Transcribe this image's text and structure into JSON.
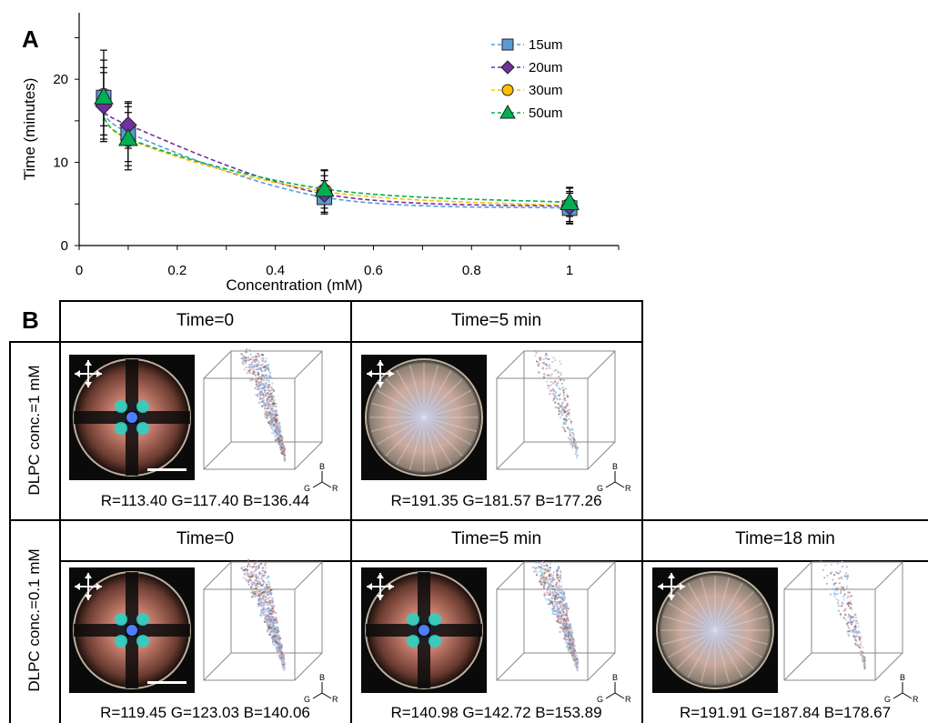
{
  "panel_a": {
    "label": "A"
  },
  "panel_b": {
    "label": "B",
    "col_headers_row1": [
      "Time=0",
      "Time=5 min"
    ],
    "col_headers_row2": [
      "Time=0",
      "Time=5 min",
      "Time=18 min"
    ],
    "row_labels": [
      "DLPC conc.=1 mM",
      "DLPC conc.=0.1 mM"
    ],
    "rgb_row1": [
      "R=113.40 G=117.40 B=136.44",
      "R=191.35 G=181.57 B=177.26"
    ],
    "rgb_row2": [
      "R=119.45 G=123.03 B=140.06",
      "R=140.98 G=142.72 B=153.89",
      "R=191.91 G=187.84 B=178.67"
    ],
    "axis_letters": {
      "b": "B",
      "g": "G",
      "r": "R"
    },
    "micro_images": [
      {
        "pattern": "maltese-cross",
        "state": "initial"
      },
      {
        "pattern": "uniform-bright",
        "state": "5 min"
      },
      {
        "pattern": "maltese-cross",
        "state": "initial"
      },
      {
        "pattern": "maltese-cross-rim",
        "state": "5 min"
      },
      {
        "pattern": "uniform-bright",
        "state": "18 min"
      }
    ]
  },
  "chart_data": {
    "type": "line",
    "title": "",
    "xlabel": "Concentration (mM)",
    "ylabel": "Time (minutes)",
    "xlim": [
      0,
      1.1
    ],
    "ylim": [
      0,
      28
    ],
    "xticks": [
      0,
      0.2,
      0.4,
      0.6,
      0.8,
      1
    ],
    "xtick_labels": [
      "0",
      "0.2",
      "0.4",
      "0.6",
      "0.8",
      "1"
    ],
    "yticks": [
      0,
      10,
      20
    ],
    "ytick_labels": [
      "0",
      "10",
      "20"
    ],
    "legend_position": "top-right",
    "x": [
      0.05,
      0.1,
      0.5,
      1.0
    ],
    "series": [
      {
        "name": "15um",
        "marker": "square",
        "color": "#5b9bd5",
        "values": [
          17.8,
          13.6,
          5.8,
          4.5
        ],
        "err": [
          4.5,
          3.5,
          2.0,
          1.8
        ]
      },
      {
        "name": "20um",
        "marker": "diamond",
        "color": "#7030a0",
        "values": [
          16.8,
          14.5,
          6.2,
          4.7
        ],
        "err": [
          4.0,
          2.8,
          2.2,
          1.8
        ]
      },
      {
        "name": "30um",
        "marker": "circle",
        "color": "#ffc000",
        "values": [
          18.0,
          12.8,
          6.5,
          4.8
        ],
        "err": [
          5.5,
          3.2,
          2.5,
          2.2
        ]
      },
      {
        "name": "50um",
        "marker": "triangle",
        "color": "#00b050",
        "values": [
          17.9,
          12.9,
          6.8,
          5.2
        ],
        "err": [
          3.5,
          3.8,
          2.3,
          1.7
        ]
      }
    ]
  }
}
